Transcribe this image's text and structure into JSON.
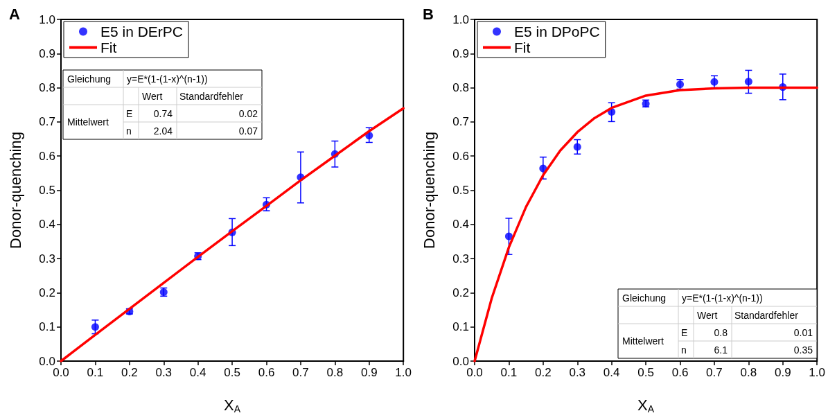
{
  "chart_data": [
    {
      "type": "scatter",
      "title": "A",
      "xlabel": "X$_{A}$",
      "ylabel": "Donor-quenching",
      "xlim": [
        0,
        1
      ],
      "ylim": [
        0,
        1
      ],
      "xticks": [
        {
          "value": 0,
          "label": "0.0"
        },
        {
          "value": 0.1,
          "label": "0.1"
        },
        {
          "value": 0.2,
          "label": "0.2"
        },
        {
          "value": 0.3,
          "label": "0.3"
        },
        {
          "value": 0.4,
          "label": "0.4"
        },
        {
          "value": 0.5,
          "label": "0.5"
        },
        {
          "value": 0.6,
          "label": "0.6"
        },
        {
          "value": 0.7,
          "label": "0.7"
        },
        {
          "value": 0.8,
          "label": "0.8"
        },
        {
          "value": 0.9,
          "label": "0.9"
        },
        {
          "value": 1,
          "label": "1.0"
        }
      ],
      "yticks": [
        {
          "value": 0,
          "label": "0.0"
        },
        {
          "value": 0.1,
          "label": "0.1"
        },
        {
          "value": 0.2,
          "label": "0.2"
        },
        {
          "value": 0.3,
          "label": "0.3"
        },
        {
          "value": 0.4,
          "label": "0.4"
        },
        {
          "value": 0.5,
          "label": "0.5"
        },
        {
          "value": 0.6,
          "label": "0.6"
        },
        {
          "value": 0.7,
          "label": "0.7"
        },
        {
          "value": 0.8,
          "label": "0.8"
        },
        {
          "value": 0.9,
          "label": "0.9"
        },
        {
          "value": 1,
          "label": "1.0"
        }
      ],
      "grid": false,
      "legend": "top left",
      "marker": "circle",
      "series": [
        {
          "name": "E5 in DErPC",
          "color": "#0000ff",
          "x": [
            0.1,
            0.2,
            0.3,
            0.4,
            0.5,
            0.6,
            0.7,
            0.8,
            0.9
          ],
          "values": [
            0.1,
            0.145,
            0.202,
            0.307,
            0.377,
            0.458,
            0.538,
            0.606,
            0.66
          ],
          "errors": [
            [
              0.08,
              0.12
            ],
            [
              0.138,
              0.153
            ],
            [
              0.19,
              0.214
            ],
            [
              0.297,
              0.317
            ],
            [
              0.338,
              0.417
            ],
            [
              0.44,
              0.478
            ],
            [
              0.463,
              0.612
            ],
            [
              0.568,
              0.644
            ],
            [
              0.64,
              0.683
            ]
          ]
        },
        {
          "name": "Fit",
          "type": "line",
          "color": "#ff0000",
          "line_style": "solid",
          "marker": "none",
          "x": [
            0,
            0.1,
            0.2,
            0.3,
            0.4,
            0.5,
            0.6,
            0.7,
            0.8,
            0.9,
            1
          ],
          "values": [
            0,
            0.077,
            0.153,
            0.229,
            0.305,
            0.38,
            0.454,
            0.529,
            0.601,
            0.673,
            0.74
          ]
        }
      ],
      "annotations": [
        "Gleichung",
        "y=E*(1-(1-x)^(n-1))",
        "Wert",
        "Standardfehler",
        "Mittelwert",
        "E",
        "0.74",
        "0.02",
        "n",
        "2.04",
        "0.07"
      ]
    },
    {
      "type": "scatter",
      "title": "B",
      "xlabel": "X$_{A}$",
      "ylabel": "Donor-quenching",
      "xlim": [
        0,
        1
      ],
      "ylim": [
        0,
        1
      ],
      "xticks": [
        {
          "value": 0,
          "label": "0.0"
        },
        {
          "value": 0.1,
          "label": "0.1"
        },
        {
          "value": 0.2,
          "label": "0.2"
        },
        {
          "value": 0.3,
          "label": "0.3"
        },
        {
          "value": 0.4,
          "label": "0.4"
        },
        {
          "value": 0.5,
          "label": "0.5"
        },
        {
          "value": 0.6,
          "label": "0.6"
        },
        {
          "value": 0.7,
          "label": "0.7"
        },
        {
          "value": 0.8,
          "label": "0.8"
        },
        {
          "value": 0.9,
          "label": "0.9"
        },
        {
          "value": 1,
          "label": "1.0"
        }
      ],
      "yticks": [
        {
          "value": 0,
          "label": "0.0"
        },
        {
          "value": 0.1,
          "label": "0.1"
        },
        {
          "value": 0.2,
          "label": "0.2"
        },
        {
          "value": 0.3,
          "label": "0.3"
        },
        {
          "value": 0.4,
          "label": "0.4"
        },
        {
          "value": 0.5,
          "label": "0.5"
        },
        {
          "value": 0.6,
          "label": "0.6"
        },
        {
          "value": 0.7,
          "label": "0.7"
        },
        {
          "value": 0.8,
          "label": "0.8"
        },
        {
          "value": 0.9,
          "label": "0.9"
        },
        {
          "value": 1,
          "label": "1.0"
        }
      ],
      "grid": false,
      "legend": "top left",
      "marker": "circle",
      "series": [
        {
          "name": "E5 in DPoPC",
          "color": "#0000ff",
          "x": [
            0.1,
            0.2,
            0.3,
            0.4,
            0.5,
            0.6,
            0.7,
            0.8,
            0.9
          ],
          "values": [
            0.365,
            0.564,
            0.627,
            0.729,
            0.753,
            0.81,
            0.817,
            0.818,
            0.802
          ],
          "errors": [
            [
              0.312,
              0.418
            ],
            [
              0.533,
              0.597
            ],
            [
              0.606,
              0.648
            ],
            [
              0.701,
              0.756
            ],
            [
              0.744,
              0.764
            ],
            [
              0.796,
              0.824
            ],
            [
              0.8,
              0.835
            ],
            [
              0.784,
              0.851
            ],
            [
              0.765,
              0.84
            ]
          ]
        },
        {
          "name": "Fit",
          "type": "line",
          "color": "#ff0000",
          "line_style": "solid",
          "marker": "none",
          "x": [
            0,
            0.05,
            0.1,
            0.15,
            0.2,
            0.25,
            0.3,
            0.35,
            0.4,
            0.5,
            0.6,
            0.7,
            0.8,
            1
          ],
          "values": [
            0,
            0.184,
            0.333,
            0.451,
            0.544,
            0.616,
            0.67,
            0.711,
            0.741,
            0.777,
            0.793,
            0.798,
            0.8,
            0.8
          ]
        }
      ],
      "annotations": [
        "Gleichung",
        "y=E*(1-(1-x)^(n-1))",
        "Wert",
        "Standardfehler",
        "Mittelwert",
        "E",
        "0.8",
        "0.01",
        "n",
        "6.1",
        "0.35"
      ]
    }
  ]
}
